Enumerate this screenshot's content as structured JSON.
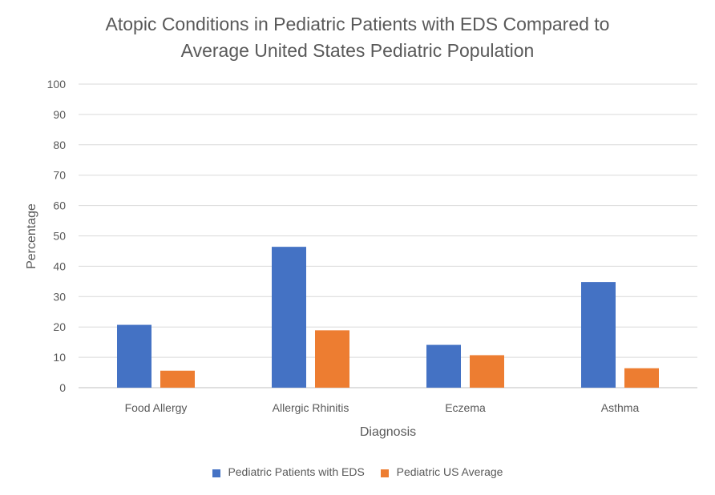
{
  "chart_data": {
    "type": "bar",
    "title_line1": "Atopic Conditions in Pediatric Patients with EDS Compared to",
    "title_line2": "Average United States Pediatric Population",
    "xlabel": "Diagnosis",
    "ylabel": "Percentage",
    "categories": [
      "Food Allergy",
      "Allergic Rhinitis",
      "Eczema",
      "Asthma"
    ],
    "series": [
      {
        "name": "Pediatric Patients with EDS",
        "color": "#4472C4",
        "values": [
          20.7,
          46.4,
          14.1,
          34.8
        ]
      },
      {
        "name": "Pediatric US Average",
        "color": "#ED7D31",
        "values": [
          5.6,
          18.9,
          10.7,
          6.4
        ]
      }
    ],
    "ylim": [
      0,
      100
    ],
    "yticks": [
      0,
      10,
      20,
      30,
      40,
      50,
      60,
      70,
      80,
      90,
      100
    ],
    "grid": true,
    "legend_position": "bottom"
  }
}
